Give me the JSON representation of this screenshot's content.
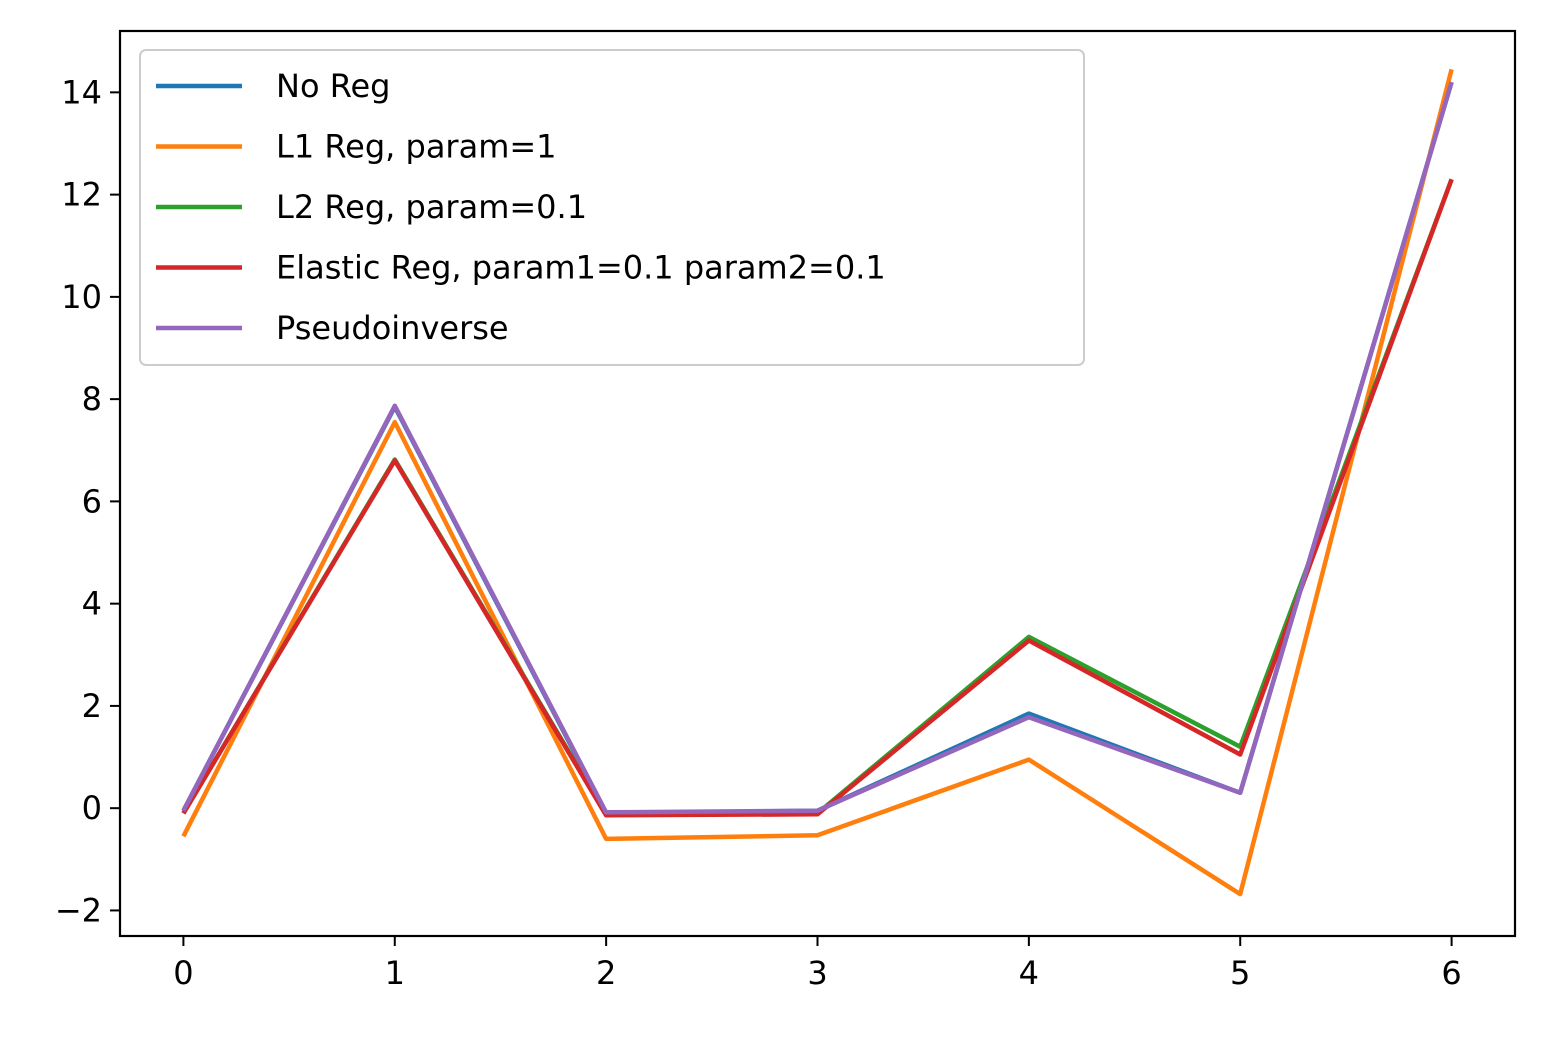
{
  "chart_data": {
    "type": "line",
    "title": "",
    "xlabel": "",
    "ylabel": "",
    "x": [
      0,
      1,
      2,
      3,
      4,
      5,
      6
    ],
    "xlim": [
      -0.3,
      6.3
    ],
    "ylim": [
      -2.5,
      15.2
    ],
    "xticks": [
      0,
      1,
      2,
      3,
      4,
      5,
      6
    ],
    "yticks": [
      -2,
      0,
      2,
      4,
      6,
      8,
      10,
      12,
      14
    ],
    "ytick_labels": [
      "−2",
      "0",
      "2",
      "4",
      "6",
      "8",
      "10",
      "12",
      "14"
    ],
    "grid": false,
    "legend_position": "upper-left",
    "series": [
      {
        "name": "No Reg",
        "color": "#1f77b4",
        "values": [
          -0.05,
          7.85,
          -0.1,
          -0.05,
          1.85,
          0.3,
          14.2
        ]
      },
      {
        "name": "L1 Reg, param=1",
        "color": "#ff7f0e",
        "values": [
          -0.55,
          7.55,
          -0.6,
          -0.53,
          0.95,
          -1.68,
          14.45
        ]
      },
      {
        "name": "L2 Reg, param=0.1",
        "color": "#2ca02c",
        "values": [
          -0.1,
          6.82,
          -0.12,
          -0.1,
          3.35,
          1.2,
          12.3
        ]
      },
      {
        "name": "Elastic Reg, param1=0.1 param2=0.1",
        "color": "#d62728",
        "values": [
          -0.1,
          6.8,
          -0.14,
          -0.12,
          3.28,
          1.05,
          12.3
        ]
      },
      {
        "name": "Pseudoinverse",
        "color": "#9467bd",
        "values": [
          -0.05,
          7.87,
          -0.08,
          -0.05,
          1.78,
          0.3,
          14.2
        ]
      }
    ]
  }
}
